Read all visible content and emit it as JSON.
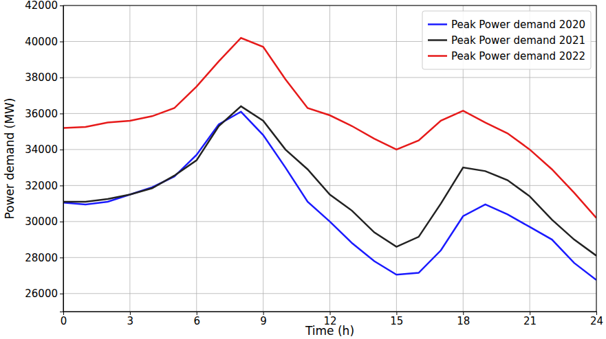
{
  "chart_data": {
    "type": "line",
    "x_label": "Time (h)",
    "y_label": "Power demand (MW)",
    "x": [
      0,
      1,
      2,
      3,
      4,
      5,
      6,
      7,
      8,
      9,
      10,
      11,
      12,
      13,
      14,
      15,
      16,
      17,
      18,
      19,
      20,
      21,
      22,
      23,
      24
    ],
    "series": [
      {
        "name": "Peak Power demand 2020",
        "color": "#1a1aff",
        "line_style": "solid",
        "values": [
          31050,
          30950,
          31100,
          31500,
          31900,
          32500,
          33700,
          35400,
          36100,
          34800,
          33000,
          31100,
          30000,
          28800,
          27800,
          27050,
          27150,
          28400,
          30300,
          30950,
          30400,
          29700,
          29000,
          27700,
          26750
        ]
      },
      {
        "name": "Peak Power demand 2021",
        "color": "#222222",
        "line_style": "solid",
        "values": [
          31100,
          31100,
          31250,
          31500,
          31850,
          32550,
          33400,
          35300,
          36400,
          35600,
          34000,
          32900,
          31500,
          30600,
          29400,
          28600,
          29150,
          31000,
          33000,
          32800,
          32300,
          31400,
          30100,
          29000,
          28100
        ]
      },
      {
        "name": "Peak Power demand 2022",
        "color": "#e61a1a",
        "line_style": "solid",
        "values": [
          35200,
          35250,
          35500,
          35600,
          35850,
          36300,
          37500,
          38900,
          40200,
          39700,
          37900,
          36300,
          35900,
          35300,
          34600,
          34000,
          34500,
          35600,
          36150,
          35500,
          34900,
          34000,
          32900,
          31600,
          30200
        ]
      }
    ],
    "xlim": [
      0,
      24
    ],
    "xticks": [
      0,
      3,
      6,
      9,
      12,
      15,
      18,
      21,
      24
    ],
    "ylim": [
      25000,
      42000
    ],
    "yticks": [
      26000,
      28000,
      30000,
      32000,
      34000,
      36000,
      38000,
      40000,
      42000
    ],
    "grid": true,
    "legend": "upper right"
  }
}
